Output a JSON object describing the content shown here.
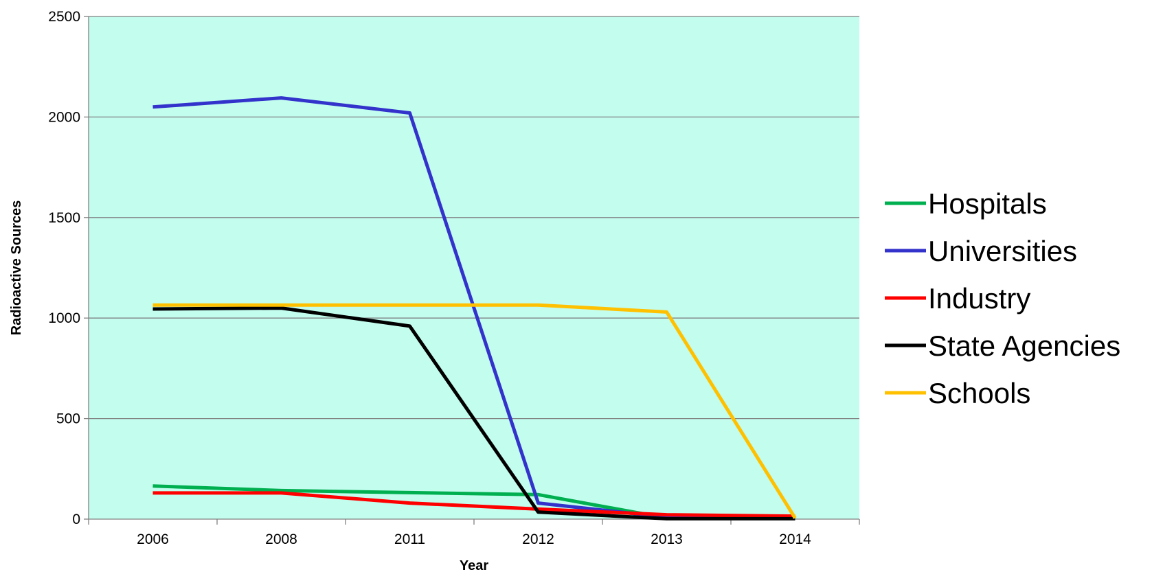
{
  "chart_data": {
    "type": "line",
    "xlabel": "Year",
    "ylabel": "Radioactive Sources",
    "categories": [
      "2006",
      "2008",
      "2011",
      "2012",
      "2013",
      "2014"
    ],
    "ylim": [
      0,
      2500
    ],
    "yticks": [
      0,
      500,
      1000,
      1500,
      2000,
      2500
    ],
    "grid": true,
    "legend_position": "right",
    "plot_background": "#c2fdee",
    "series": [
      {
        "name": "Hospitals",
        "color": "#00b050",
        "values": [
          165,
          142,
          132,
          122,
          5,
          5
        ]
      },
      {
        "name": "Universities",
        "color": "#3333cc",
        "values": [
          2050,
          2095,
          2020,
          80,
          10,
          5
        ]
      },
      {
        "name": "Industry",
        "color": "#ff0000",
        "values": [
          130,
          130,
          80,
          50,
          22,
          15
        ]
      },
      {
        "name": "State Agencies",
        "color": "#000000",
        "values": [
          1045,
          1050,
          960,
          35,
          2,
          2
        ]
      },
      {
        "name": "Schools",
        "color": "#ffc000",
        "values": [
          1065,
          1065,
          1065,
          1065,
          1030,
          5
        ]
      }
    ]
  }
}
